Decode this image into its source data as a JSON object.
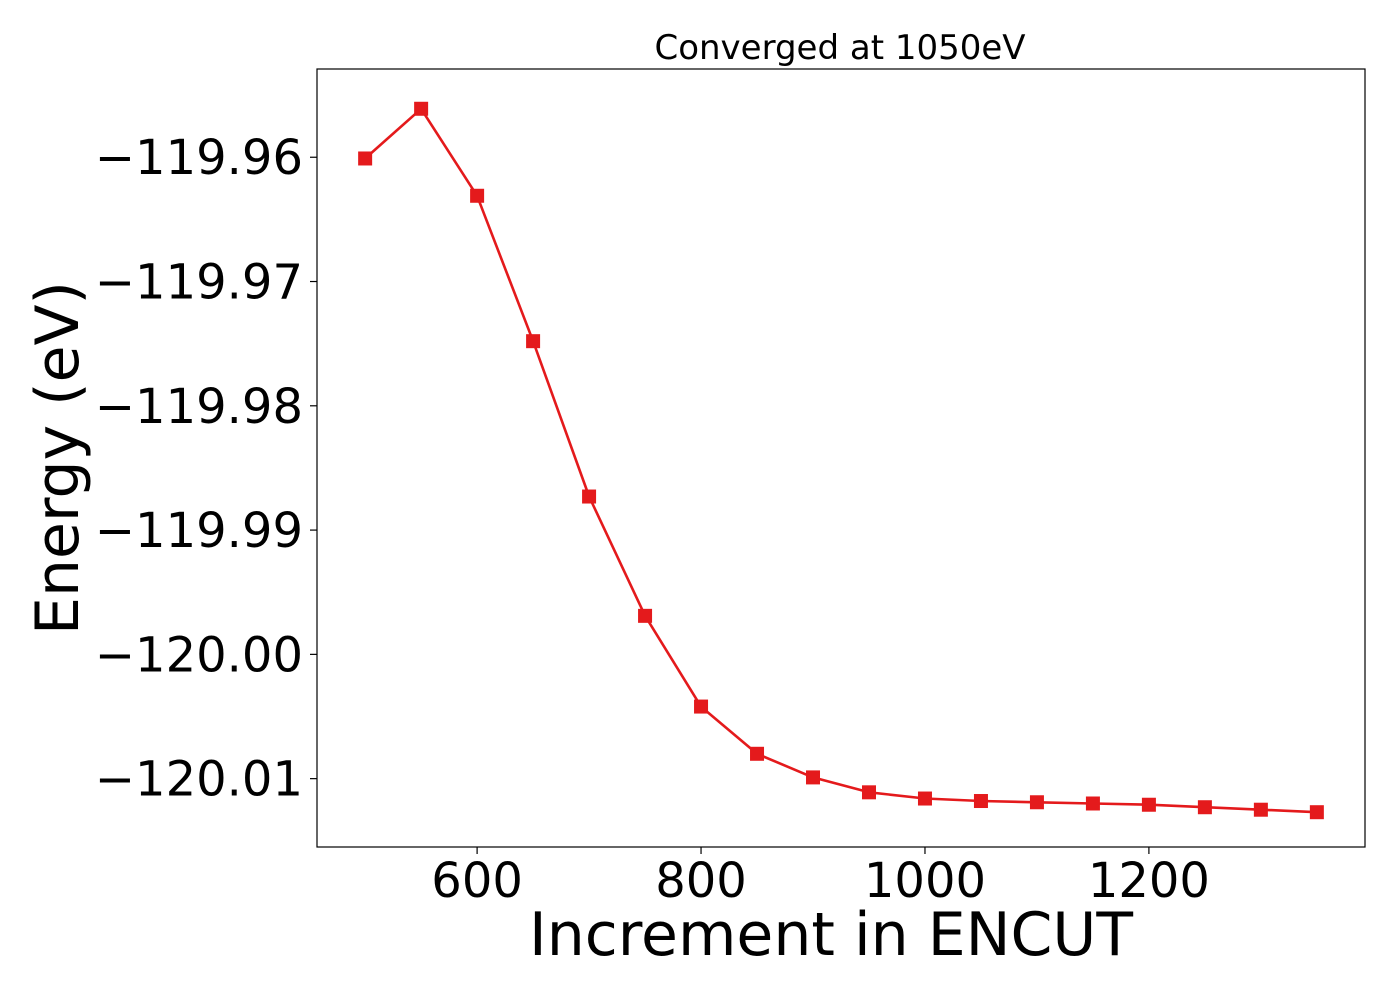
{
  "chart_data": {
    "type": "line",
    "title": "Converged at 1050eV",
    "xlabel": "Increment in ENCUT",
    "ylabel": "Energy (eV)",
    "xlim": [
      457,
      1393
    ],
    "ylim": [
      -120.0155,
      -119.9529
    ],
    "xticks": [
      600,
      800,
      1000,
      1200
    ],
    "xtick_labels": [
      "600",
      "800",
      "1000",
      "1200"
    ],
    "yticks": [
      -119.96,
      -119.97,
      -119.98,
      -119.99,
      -120.0,
      -120.01
    ],
    "ytick_labels": [
      "−119.96",
      "−119.97",
      "−119.98",
      "−119.99",
      "−120.00",
      "−120.01"
    ],
    "grid": false,
    "series": [
      {
        "color": "#e41a1c",
        "marker": "square",
        "x": [
          500,
          550,
          600,
          650,
          700,
          750,
          800,
          850,
          900,
          950,
          1000,
          1050,
          1100,
          1150,
          1200,
          1250,
          1300,
          1350
        ],
        "y": [
          -119.9601,
          -119.9561,
          -119.9631,
          -119.9748,
          -119.9873,
          -119.9969,
          -120.0042,
          -120.008,
          -120.0099,
          -120.0111,
          -120.0116,
          -120.0118,
          -120.0119,
          -120.012,
          -120.0121,
          -120.0123,
          -120.0125,
          -120.0127
        ]
      }
    ]
  }
}
